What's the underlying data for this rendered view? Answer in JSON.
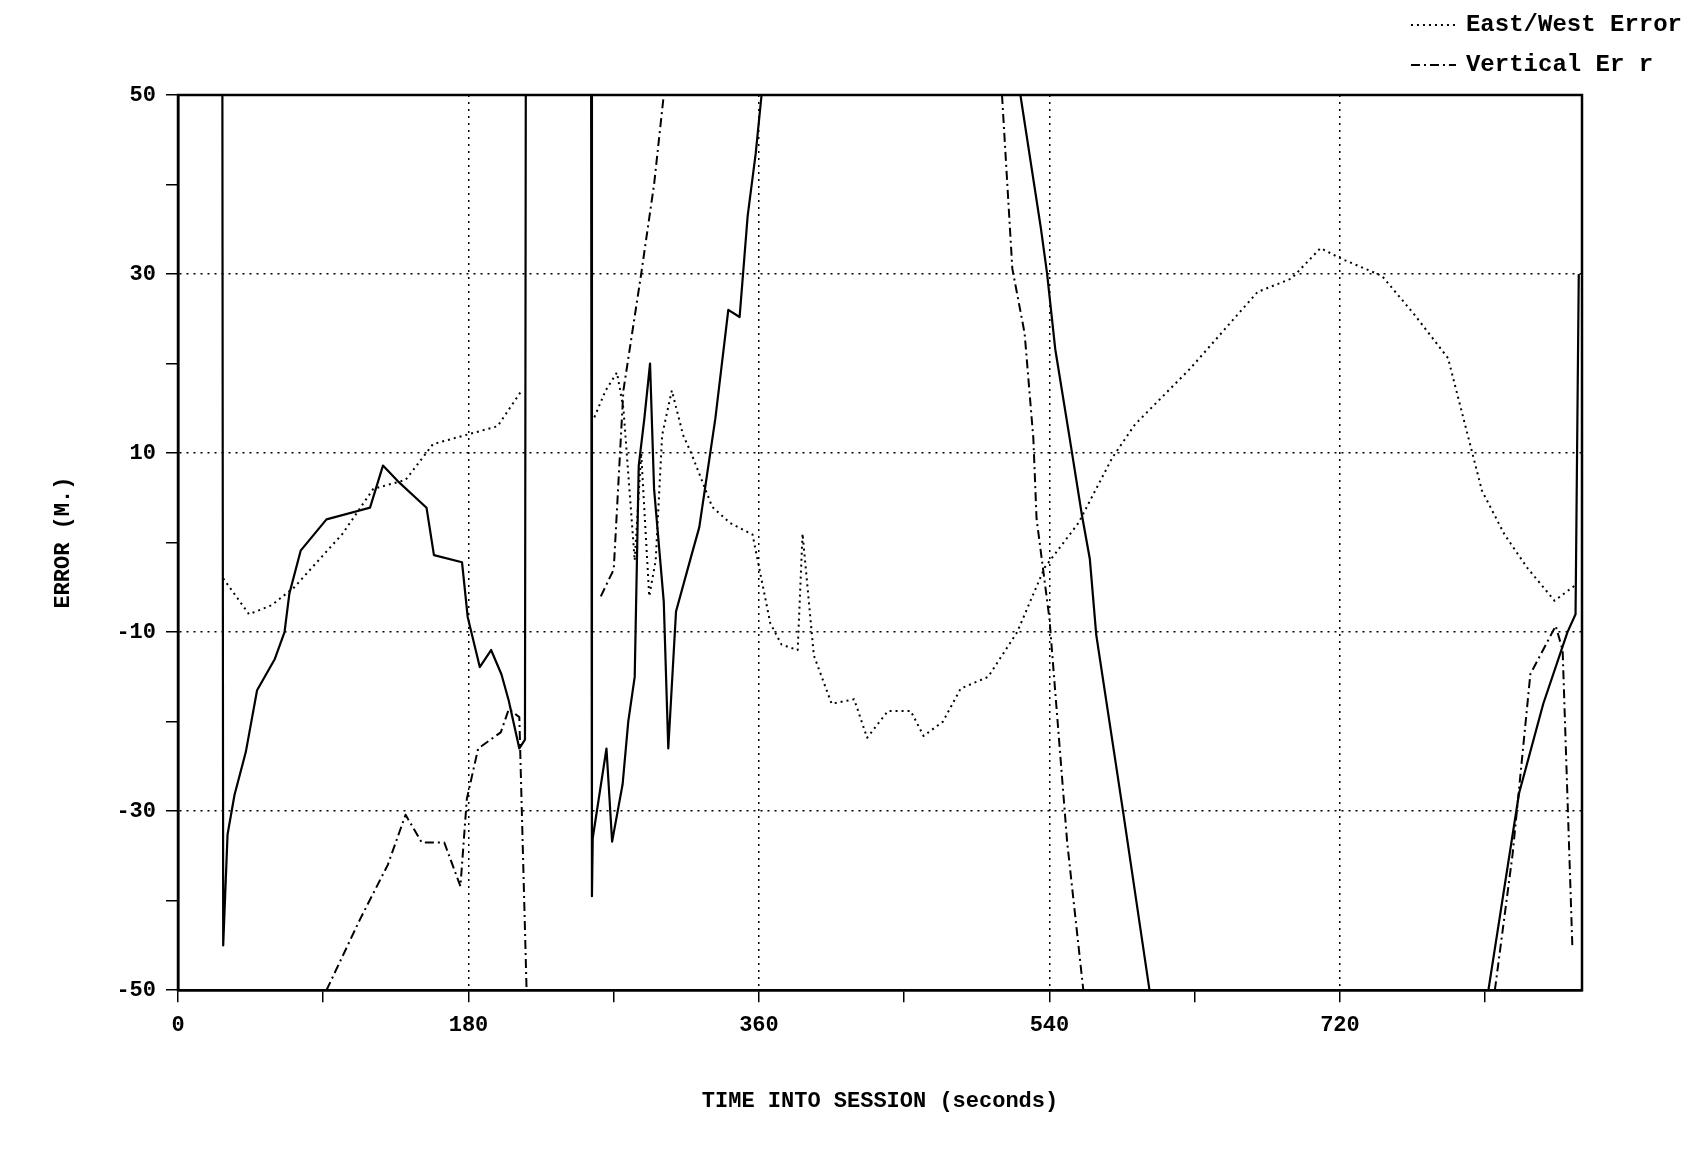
{
  "chart_data": {
    "type": "line",
    "xlabel": "TIME INTO SESSION (seconds)",
    "ylabel": "ERROR (M.)",
    "xlim": [
      0,
      870
    ],
    "xticks": [
      0,
      {
        "value": 90,
        "label": null
      },
      180,
      {
        "value": 270,
        "label": null
      },
      360,
      {
        "value": 450,
        "label": null
      },
      540,
      {
        "value": 630,
        "label": null
      },
      720,
      {
        "value": 810,
        "label": null
      }
    ],
    "ylim": [
      -50,
      50
    ],
    "yticks": [
      -50,
      {
        "value": -40,
        "label": null
      },
      -30,
      {
        "value": -20,
        "label": null
      },
      -10,
      {
        "value": 0,
        "label": null
      },
      10,
      {
        "value": 20,
        "label": null
      },
      30,
      {
        "value": 40,
        "label": null
      },
      50
    ],
    "grid": true,
    "legend": "top right",
    "marker": "none",
    "series": [
      {
        "color": "#000000",
        "line_style": "solid",
        "x": [
          27.5,
          28,
          30.7,
          35,
          42,
          49,
          60,
          66,
          69,
          76,
          92,
          119,
          127,
          136,
          154,
          158.6,
          176,
          179.5,
          187,
          194,
          200.4,
          205,
          211.5,
          215,
          215.5,
          235,
          256,
          256.5,
          257,
          265.5,
          269,
          275.5,
          279,
          283,
          285.5,
          289,
          292.5,
          295,
          301,
          303.8,
          308.6,
          318.5,
          323,
          333,
          341,
          348,
          353,
          358,
          361.6,
          450,
          522,
          534.7,
          538.5,
          543.6,
          552.5,
          560,
          565,
          569,
          586,
          602,
          700,
          812,
          831,
          846,
          861,
          866,
          868
        ],
        "values": [
          50,
          -45,
          -32.6,
          -28.2,
          -23.4,
          -16.5,
          -13,
          -10,
          -5.7,
          -0.9,
          2.6,
          3.9,
          8.6,
          6.9,
          3.9,
          -1.4,
          -2.2,
          -8.3,
          -13.9,
          -12,
          -14.7,
          -17.7,
          -23,
          -22,
          50,
          null,
          50,
          -39.5,
          -33,
          -23,
          -33.4,
          -27,
          -20,
          -15,
          8.6,
          13.9,
          20,
          6,
          -6.6,
          -23,
          -7.7,
          -1.2,
          1.7,
          13.9,
          26,
          25.2,
          36.5,
          43.5,
          50,
          null,
          50,
          35.1,
          30.1,
          21.6,
          11.7,
          3.2,
          -1.8,
          -10.3,
          -30.5,
          -50,
          null,
          -50,
          -28,
          -18,
          -10,
          -8,
          30
        ]
      },
      {
        "name": "East/West Error",
        "color": "#000000",
        "line_style": "dotted",
        "x": [
          28,
          44,
          58,
          72,
          87,
          102,
          121,
          141,
          158,
          178,
          198,
          213,
          235,
          258,
          265,
          272,
          276,
          283,
          287,
          292,
          296,
          300,
          306,
          313,
          318,
          331,
          342,
          356,
          367,
          374,
          384,
          387,
          394,
          405,
          419,
          427,
          440,
          454,
          462,
          474,
          485,
          502,
          520,
          537,
          558,
          579,
          593,
          627,
          669,
          690,
          708,
          721,
          746,
          766,
          787,
          808,
          822,
          836,
          853,
          867
        ],
        "values": [
          -4,
          -8,
          -7,
          -5,
          -2,
          1,
          6,
          7,
          11,
          12,
          13,
          17,
          null,
          14,
          17,
          19,
          15,
          -2,
          10,
          -6,
          -2,
          12,
          17,
          12,
          10,
          4,
          2.2,
          0.9,
          -9,
          -11.4,
          -12,
          1,
          -12.6,
          -18,
          -17.5,
          -21.8,
          -18.8,
          -18.8,
          -21.6,
          -20,
          -16.3,
          -15,
          -10,
          -2.8,
          2.2,
          9.5,
          13.2,
          19.4,
          28,
          29.5,
          32.9,
          31.7,
          29.8,
          25.5,
          20.6,
          5.8,
          0.9,
          -2.8,
          -6.5,
          -4.6
        ]
      },
      {
        "name": "Vertical Er r",
        "color": "#000000",
        "line_style": "dashed",
        "x": [
          92,
          113,
          130,
          141,
          151,
          165,
          175,
          179,
          186,
          200,
          205,
          211.5,
          216,
          240,
          262,
          270,
          276,
          287,
          295,
          301,
          400,
          510.6,
          517,
          524.6,
          530,
          532,
          540,
          551,
          561,
          700,
          816,
          827,
          838,
          853.7,
          858,
          864
        ],
        "values": [
          -50,
          -42,
          -36,
          -30.4,
          -33.5,
          -33.5,
          -38.4,
          -28.6,
          -23,
          -21.2,
          -18.6,
          -19.5,
          -50,
          null,
          -6,
          -3,
          17,
          30,
          40,
          50,
          null,
          50,
          30.6,
          23.4,
          11.7,
          2.7,
          -8.5,
          -33.5,
          -50,
          null,
          -50,
          -34.8,
          -14.7,
          -9.3,
          -12,
          -45
        ]
      }
    ]
  }
}
